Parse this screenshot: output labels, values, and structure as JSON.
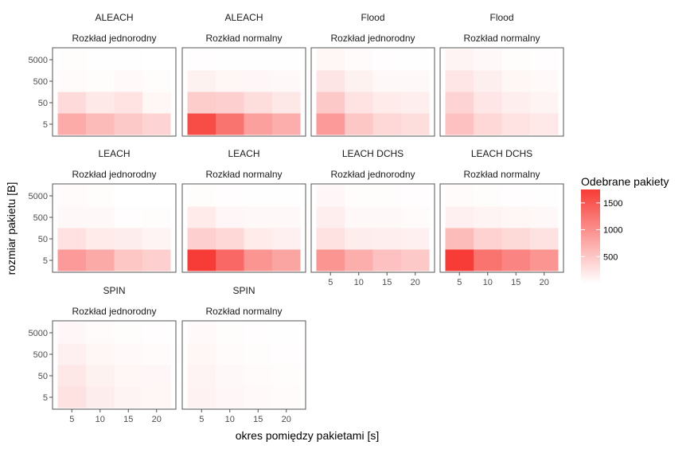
{
  "chart_data": {
    "type": "heatmap",
    "xlabel": "okres pomiędzy pakietami [s]",
    "ylabel": "rozmiar pakietu [B]",
    "x_categories": [
      "5",
      "10",
      "15",
      "20"
    ],
    "y_categories": [
      "5",
      "50",
      "500",
      "5000"
    ],
    "legend": {
      "title": "Odebrane pakiety",
      "ticks": [
        500,
        1000,
        1500
      ],
      "range": [
        0,
        1750
      ],
      "low_color": "#ffffff",
      "high_color": "#f73b36"
    },
    "panels": [
      {
        "protocol": "ALEACH",
        "distribution": "Rozkład jednorodny",
        "values": [
          [
            750,
            620,
            480,
            380
          ],
          [
            320,
            200,
            250,
            80
          ],
          [
            40,
            30,
            50,
            30
          ],
          [
            30,
            10,
            10,
            0
          ]
        ]
      },
      {
        "protocol": "ALEACH",
        "distribution": "Rozkład normalny",
        "values": [
          [
            1600,
            1250,
            850,
            720
          ],
          [
            450,
            420,
            300,
            210
          ],
          [
            120,
            80,
            70,
            60
          ],
          [
            20,
            10,
            10,
            5
          ]
        ]
      },
      {
        "protocol": "Flood",
        "distribution": "Rozkład jednorodny",
        "values": [
          [
            900,
            500,
            350,
            300
          ],
          [
            480,
            250,
            180,
            150
          ],
          [
            230,
            120,
            60,
            60
          ],
          [
            80,
            40,
            20,
            10
          ]
        ]
      },
      {
        "protocol": "Flood",
        "distribution": "Rozkład normalny",
        "values": [
          [
            550,
            350,
            250,
            200
          ],
          [
            380,
            220,
            150,
            100
          ],
          [
            220,
            140,
            80,
            50
          ],
          [
            100,
            60,
            30,
            20
          ]
        ]
      },
      {
        "protocol": "LEACH",
        "distribution": "Rozkład jednorodny",
        "values": [
          [
            900,
            760,
            500,
            420
          ],
          [
            270,
            180,
            160,
            100
          ],
          [
            60,
            60,
            20,
            30
          ],
          [
            40,
            30,
            0,
            0
          ]
        ]
      },
      {
        "protocol": "LEACH",
        "distribution": "Rozkład normalny",
        "values": [
          [
            1750,
            1350,
            950,
            800
          ],
          [
            420,
            350,
            180,
            130
          ],
          [
            180,
            70,
            60,
            60
          ],
          [
            30,
            20,
            10,
            5
          ]
        ]
      },
      {
        "protocol": "LEACH DCHS",
        "distribution": "Rozkład jednorodny",
        "values": [
          [
            950,
            720,
            550,
            480
          ],
          [
            260,
            160,
            150,
            130
          ],
          [
            150,
            60,
            60,
            40
          ],
          [
            70,
            30,
            30,
            20
          ]
        ]
      },
      {
        "protocol": "LEACH DCHS",
        "distribution": "Rozkład normalny",
        "values": [
          [
            1750,
            1250,
            1100,
            950
          ],
          [
            600,
            400,
            340,
            260
          ],
          [
            130,
            100,
            80,
            60
          ],
          [
            40,
            30,
            20,
            10
          ]
        ]
      },
      {
        "protocol": "SPIN",
        "distribution": "Rozkład jednorodny",
        "values": [
          [
            260,
            160,
            100,
            80
          ],
          [
            210,
            120,
            80,
            70
          ],
          [
            130,
            80,
            50,
            40
          ],
          [
            70,
            40,
            30,
            20
          ]
        ]
      },
      {
        "protocol": "SPIN",
        "distribution": "Rozkład normalny",
        "values": [
          [
            110,
            70,
            50,
            40
          ],
          [
            100,
            60,
            40,
            30
          ],
          [
            80,
            40,
            30,
            20
          ],
          [
            50,
            30,
            20,
            10
          ]
        ]
      }
    ]
  },
  "colors": {
    "panel_border": "#555555",
    "tick": "#4d4d4d",
    "background": "#ffffff"
  }
}
